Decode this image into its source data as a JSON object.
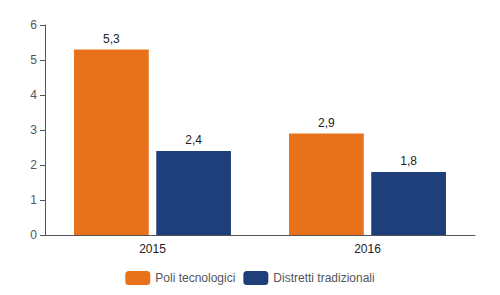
{
  "chart_data": {
    "type": "bar",
    "categories": [
      "2015",
      "2016"
    ],
    "series": [
      {
        "name": "Poli tecnologici",
        "color": "#E8721C",
        "values": [
          5.3,
          2.9
        ],
        "value_labels": [
          "5,3",
          "2,9"
        ]
      },
      {
        "name": "Distretti tradizionali",
        "color": "#1F3F7A",
        "values": [
          2.4,
          1.8
        ],
        "value_labels": [
          "2,4",
          "1,8"
        ]
      }
    ],
    "ylim": [
      0,
      6
    ],
    "yticks": [
      0,
      1,
      2,
      3,
      4,
      5,
      6
    ],
    "grid": false,
    "legend": "bottom",
    "data_labels": true
  }
}
